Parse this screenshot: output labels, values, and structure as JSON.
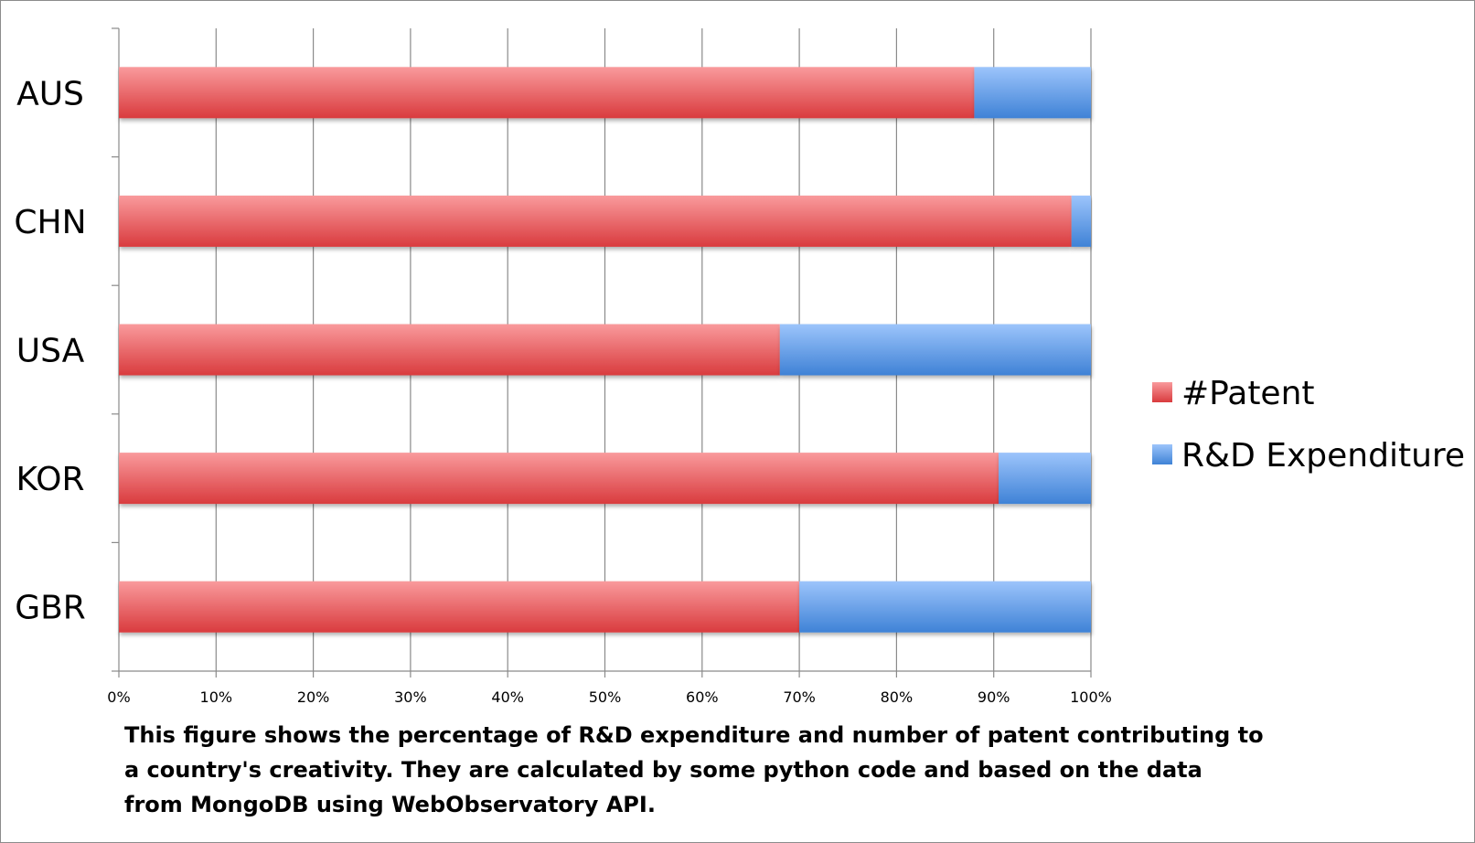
{
  "chart_data": {
    "type": "bar",
    "orientation": "horizontal",
    "stacked": "percent",
    "categories": [
      "AUS",
      "CHN",
      "USA",
      "KOR",
      "GBR"
    ],
    "series": [
      {
        "name": "#Patent",
        "values": [
          88,
          98,
          68,
          90.5,
          70
        ],
        "color": "#e0474c"
      },
      {
        "name": "R&D Expenditure",
        "values": [
          12,
          2,
          32,
          9.5,
          30
        ],
        "color": "#4a8fe3"
      }
    ],
    "x_ticks": [
      "0%",
      "10%",
      "20%",
      "30%",
      "40%",
      "50%",
      "60%",
      "70%",
      "80%",
      "90%",
      "100%"
    ],
    "xlim": [
      0,
      100
    ],
    "grid": "vertical",
    "legend": "right",
    "caption": "This figure shows the percentage of R&D expenditure and number of patent contributing to a country's creativity. They are calculated by some python code and based on the data from MongoDB using WebObservatory API."
  }
}
